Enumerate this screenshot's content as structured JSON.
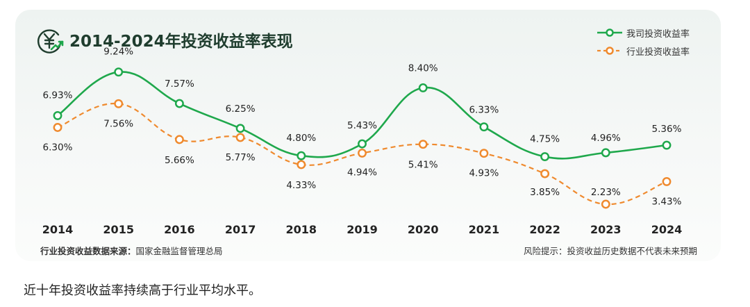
{
  "title": "2014-2024年投资收益率表现",
  "icon": "yen-growth-icon",
  "colors": {
    "company": "#1fa84c",
    "industry": "#ef8a2e",
    "title": "#1f3d2e"
  },
  "chart_data": {
    "type": "line",
    "title": "2014-2024年投资收益率表现",
    "categories": [
      "2014",
      "2015",
      "2016",
      "2017",
      "2018",
      "2019",
      "2020",
      "2021",
      "2022",
      "2023",
      "2024"
    ],
    "series": [
      {
        "name": "我司投资收益率",
        "style": "solid",
        "values": [
          6.93,
          9.24,
          7.57,
          6.25,
          4.8,
          5.43,
          8.4,
          6.33,
          4.75,
          4.96,
          5.36
        ],
        "labels": [
          "6.93%",
          "9.24%",
          "7.57%",
          "6.25%",
          "4.80%",
          "5.43%",
          "8.40%",
          "6.33%",
          "4.75%",
          "4.96%",
          "5.36%"
        ]
      },
      {
        "name": "行业投资收益率",
        "style": "dashed",
        "values": [
          6.3,
          7.56,
          5.66,
          5.77,
          4.33,
          4.94,
          5.41,
          4.93,
          3.85,
          2.23,
          3.43
        ],
        "labels": [
          "6.30%",
          "7.56%",
          "5.66%",
          "5.77%",
          "4.33%",
          "4.94%",
          "5.41%",
          "4.93%",
          "3.85%",
          "2.23%",
          "3.43%"
        ]
      }
    ],
    "legend": "top-right",
    "grid": false
  },
  "footer": {
    "source_label": "行业投资收益数据来源：",
    "source_value": "国家金融监督管理总局",
    "risk_note": "风险提示：投资收益历史数据不代表未来预期"
  },
  "caption": "近十年投资收益率持续高于行业平均水平。"
}
